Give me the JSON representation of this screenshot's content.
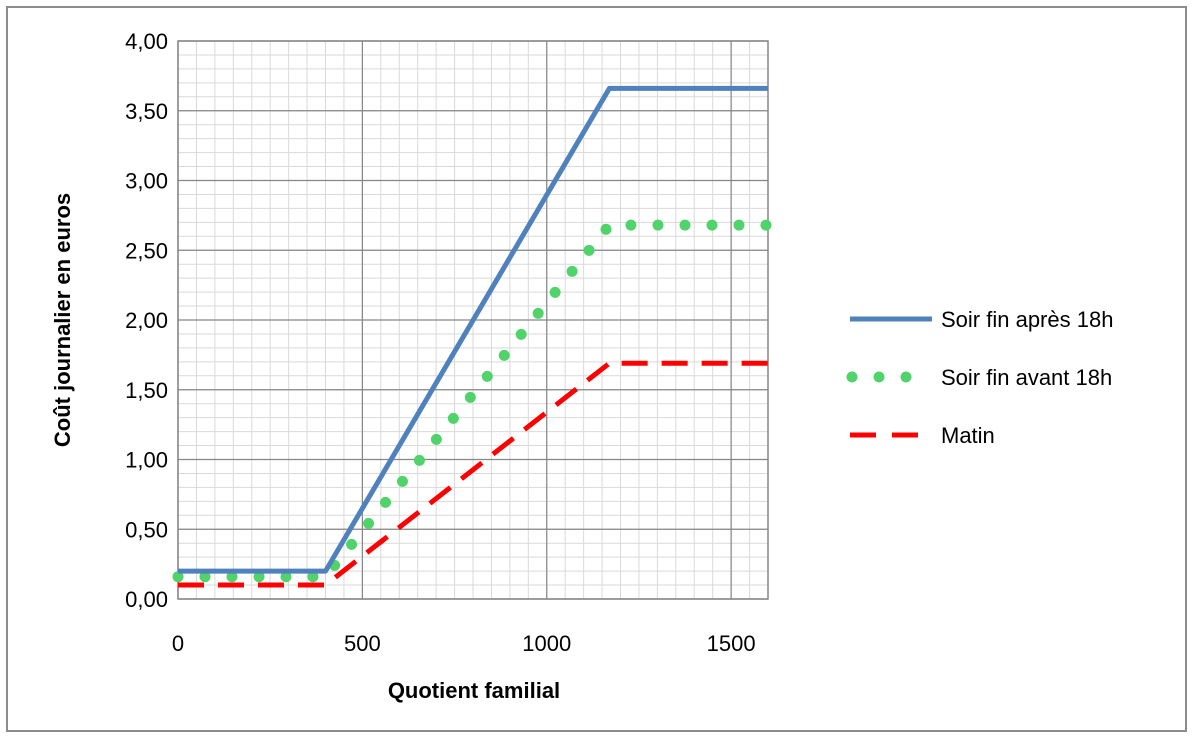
{
  "chart_data": {
    "type": "line",
    "title": "",
    "xlabel": "Quotient familial",
    "ylabel": "Coût journalier  en euros",
    "xlim": [
      0,
      1600
    ],
    "ylim": [
      0,
      4.0
    ],
    "x_ticks": [
      0,
      500,
      1000,
      1500
    ],
    "x_tick_labels": [
      "0",
      "500",
      "1000",
      "1500"
    ],
    "y_ticks": [
      0,
      0.5,
      1.0,
      1.5,
      2.0,
      2.5,
      3.0,
      3.5,
      4.0
    ],
    "y_tick_labels": [
      "0,00",
      "0,50",
      "1,00",
      "1,50",
      "2,00",
      "2,50",
      "3,00",
      "3,50",
      "4,00"
    ],
    "grid": true,
    "legend_position": "right",
    "series": [
      {
        "name": "Soir fin après 18h",
        "color": "#4f81bd",
        "style": "solid",
        "x": [
          0,
          400,
          1170,
          1600
        ],
        "y": [
          0.2,
          0.2,
          3.66,
          3.66
        ]
      },
      {
        "name": "Soir fin avant 18h",
        "color": "#4fd36a",
        "style": "dotted",
        "x": [
          0,
          400,
          1170,
          1600
        ],
        "y": [
          0.16,
          0.16,
          2.68,
          2.68
        ]
      },
      {
        "name": "Matin",
        "color": "#ff0000",
        "style": "dashed",
        "x": [
          0,
          400,
          1170,
          1600
        ],
        "y": [
          0.1,
          0.1,
          1.69,
          1.69
        ]
      }
    ]
  }
}
